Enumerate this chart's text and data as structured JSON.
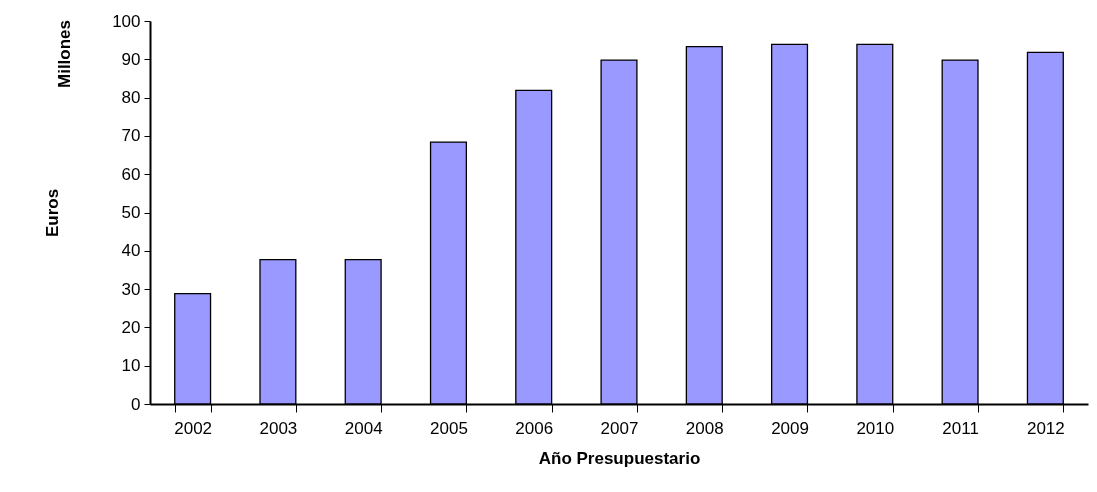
{
  "chart_data": {
    "type": "bar",
    "xlabel": "Año Presupuestario",
    "ylabel": "Euros",
    "annotations": [
      "Millones"
    ],
    "categories": [
      "2002",
      "2003",
      "2004",
      "2005",
      "2006",
      "2007",
      "2008",
      "2009",
      "2010",
      "2011",
      "2012"
    ],
    "values": [
      28.8,
      37.7,
      37.7,
      68.4,
      81.9,
      89.8,
      93.3,
      93.9,
      93.9,
      89.8,
      91.8
    ],
    "color": "#9999ff",
    "ylim": [
      0,
      100
    ],
    "yticks": [
      0,
      10,
      20,
      30,
      40,
      50,
      60,
      70,
      80,
      90,
      100
    ],
    "grid": false
  }
}
